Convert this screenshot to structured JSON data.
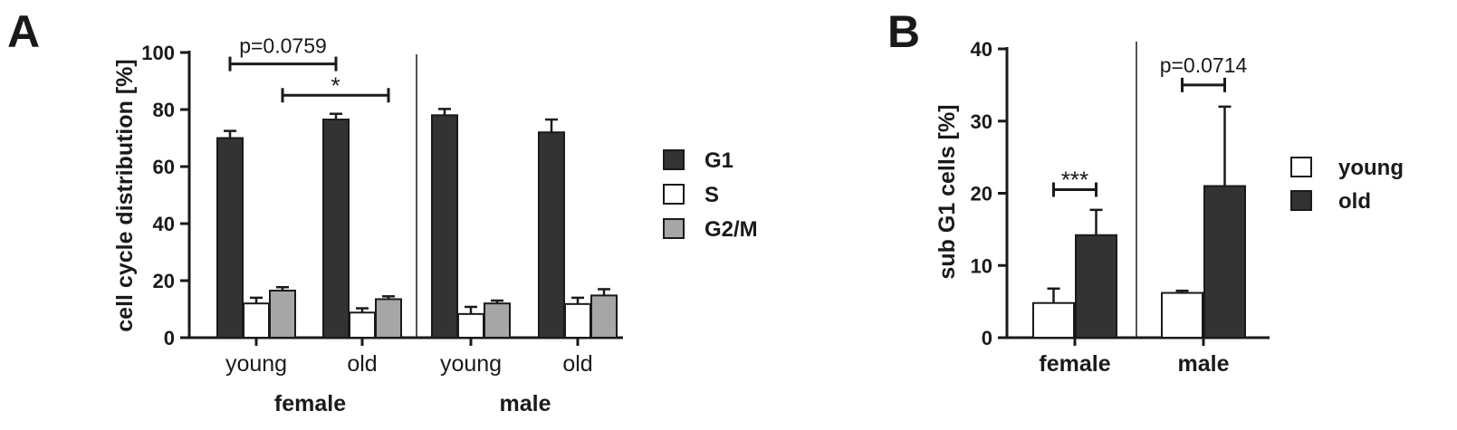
{
  "colors": {
    "g1": "#333333",
    "s": "#ffffff",
    "g2m": "#a6a6a6",
    "young": "#ffffff",
    "old": "#333333",
    "axis": "#1a1a1a"
  },
  "chart_data": [
    {
      "panel_label": "A",
      "type": "bar",
      "ylabel": "cell cycle distribution [%]",
      "ylim": [
        0,
        100
      ],
      "yticks": [
        "0",
        "20",
        "40",
        "60",
        "80",
        "100"
      ],
      "groups": [
        {
          "sex": "female",
          "ages": [
            {
              "label": "young",
              "values": [
                70,
                12,
                16.5
              ],
              "errors": [
                2.5,
                2,
                1.2
              ]
            },
            {
              "label": "old",
              "values": [
                76.5,
                8.8,
                13.5
              ],
              "errors": [
                2,
                1.5,
                1
              ]
            }
          ]
        },
        {
          "sex": "male",
          "ages": [
            {
              "label": "young",
              "values": [
                78,
                8.3,
                12
              ],
              "errors": [
                2.2,
                2.5,
                1
              ]
            },
            {
              "label": "old",
              "values": [
                72,
                11.8,
                14.8
              ],
              "errors": [
                4.5,
                2.2,
                2.2
              ]
            }
          ]
        }
      ],
      "series": [
        {
          "name": "G1"
        },
        {
          "name": "S"
        },
        {
          "name": "G2/M"
        }
      ],
      "annotations": [
        {
          "text": "p=0.0759",
          "from": "female-young-G1",
          "to": "female-old-G1",
          "y": 96
        },
        {
          "text": "*",
          "from": "female-young-G2/M",
          "to": "female-old-G2/M",
          "y": 85
        }
      ],
      "legend": "right"
    },
    {
      "panel_label": "B",
      "type": "bar",
      "ylabel": "sub G1 cells [%]",
      "ylim": [
        0,
        40
      ],
      "yticks": [
        "0",
        "10",
        "20",
        "30",
        "40"
      ],
      "categories": [
        "female",
        "male"
      ],
      "series": [
        {
          "name": "young",
          "values": [
            4.8,
            6.2
          ],
          "errors": [
            2,
            0.3
          ]
        },
        {
          "name": "old",
          "values": [
            14.2,
            21
          ],
          "errors": [
            3.5,
            11
          ]
        }
      ],
      "annotations": [
        {
          "text": "***",
          "category": "female",
          "y": 20.5
        },
        {
          "text": "p=0.0714",
          "category": "male",
          "y": 35
        }
      ],
      "legend": "right"
    }
  ]
}
